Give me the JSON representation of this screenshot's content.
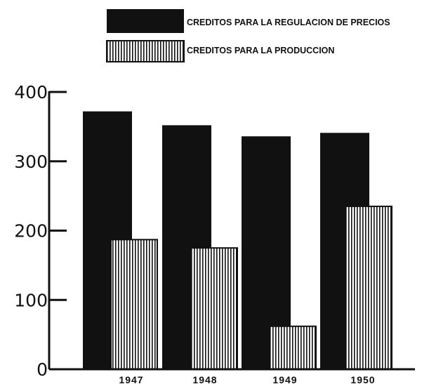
{
  "chart_data": {
    "type": "bar",
    "categories": [
      "1947",
      "1948",
      "1949",
      "1950"
    ],
    "series": [
      {
        "name": "CREDITOS PARA LA REGULACION DE PRECIOS",
        "values": [
          372,
          352,
          336,
          341
        ],
        "pattern": "solid",
        "color": "#111111"
      },
      {
        "name": "CREDITOS PARA LA PRODUCCION",
        "values": [
          187,
          175,
          62,
          235
        ],
        "pattern": "vertical-stripes",
        "color": "#111111"
      }
    ],
    "yticks": [
      "0",
      "100",
      "200",
      "300",
      "400"
    ],
    "ylim": [
      0,
      400
    ],
    "grid": false,
    "legend_position": "top"
  }
}
